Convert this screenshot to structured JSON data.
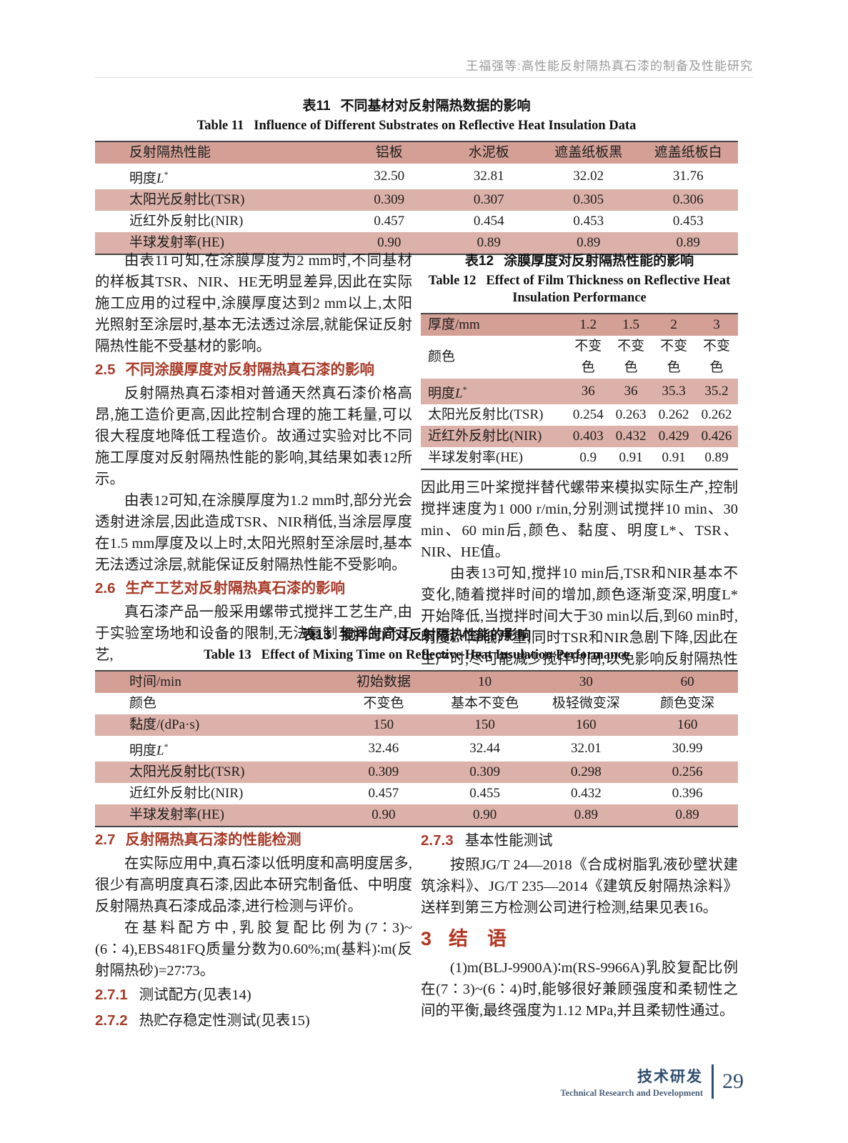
{
  "running_head": "王福强等:高性能反射隔热真石漆的制备及性能研究",
  "tables": {
    "table11": {
      "label_cn": "表11",
      "title_cn": "不同基材对反射隔热数据的影响",
      "label_en": "Table 11",
      "title_en": "Influence of Different Substrates on Reflective Heat Insulation Data",
      "rows": [
        [
          "反射隔热性能",
          "铝板",
          "水泥板",
          "遮盖纸板黑",
          "遮盖纸板白"
        ],
        [
          "明度L*",
          "32.50",
          "32.81",
          "32.02",
          "31.76"
        ],
        [
          "太阳光反射比(TSR)",
          "0.309",
          "0.307",
          "0.305",
          "0.306"
        ],
        [
          "近红外反射比(NIR)",
          "0.457",
          "0.454",
          "0.453",
          "0.453"
        ],
        [
          "半球发射率(HE)",
          "0.90",
          "0.89",
          "0.89",
          "0.89"
        ]
      ]
    },
    "table12": {
      "label_cn": "表12",
      "title_cn": "涂膜厚度对反射隔热性能的影响",
      "label_en": "Table 12",
      "title_en": "Effect of Film Thickness on Reflective Heat Insulation Performance",
      "rows": [
        [
          "厚度/mm",
          "1.2",
          "1.5",
          "2",
          "3"
        ],
        [
          "颜色",
          "不变色",
          "不变色",
          "不变色",
          "不变色"
        ],
        [
          "明度L*",
          "36",
          "36",
          "35.3",
          "35.2"
        ],
        [
          "太阳光反射比(TSR)",
          "0.254",
          "0.263",
          "0.262",
          "0.262"
        ],
        [
          "近红外反射比(NIR)",
          "0.403",
          "0.432",
          "0.429",
          "0.426"
        ],
        [
          "半球发射率(HE)",
          "0.9",
          "0.91",
          "0.91",
          "0.89"
        ]
      ]
    },
    "table13": {
      "label_cn": "表13",
      "title_cn": "搅拌时间对反射隔热性能的影响",
      "label_en": "Table 13",
      "title_en": "Effect of Mixing Time on Reflective Heat Insulation Performance",
      "rows": [
        [
          "时间/min",
          "初始数据",
          "10",
          "30",
          "60"
        ],
        [
          "颜色",
          "不变色",
          "基本不变色",
          "极轻微变深",
          "颜色变深"
        ],
        [
          "黏度/(dPa·s)",
          "150",
          "150",
          "160",
          "160"
        ],
        [
          "明度L*",
          "32.46",
          "32.44",
          "32.01",
          "30.99"
        ],
        [
          "太阳光反射比(TSR)",
          "0.309",
          "0.309",
          "0.298",
          "0.256"
        ],
        [
          "近红外反射比(NIR)",
          "0.457",
          "0.455",
          "0.432",
          "0.396"
        ],
        [
          "半球发射率(HE)",
          "0.90",
          "0.90",
          "0.89",
          "0.89"
        ]
      ]
    }
  },
  "body": {
    "p_table11": "由表11可知,在涂膜厚度为2 mm时,不同基材的样板其TSR、NIR、HE无明显差异,因此在实际施工应用的过程中,涂膜厚度达到2 mm以上,太阳光照射至涂层时,基本无法透过涂层,就能保证反射隔热性能不受基材的影响。",
    "h25": {
      "num": "2.5",
      "title": "不同涂膜厚度对反射隔热真石漆的影响"
    },
    "p25": "反射隔热真石漆相对普通天然真石漆价格高昂,施工造价更高,因此控制合理的施工耗量,可以很大程度地降低工程造价。故通过实验对比不同施工厚度对反射隔热性能的影响,其结果如表12所示。",
    "p_table12": "由表12可知,在涂膜厚度为1.2 mm时,部分光会透射进涂层,因此造成TSR、NIR稍低,当涂层厚度在1.5 mm厚度及以上时,太阳光照射至涂层时,基本无法透过涂层,就能保证反射隔热性能不受影响。",
    "h26": {
      "num": "2.6",
      "title": "生产工艺对反射隔热真石漆的影响"
    },
    "p26a": "真石漆产品一般采用螺带式搅拌工艺生产,由于实验室场地和设备的限制,无法复制车间生产工艺,",
    "p26b": "因此用三叶桨搅拌替代螺带来模拟实际生产,控制搅拌速度为1 000 r/min,分别测试搅拌10 min、30 min、60 min后,颜色、黏度、明度L*、TSR、NIR、HE值。",
    "p_table13": "由表13可知,搅拌10 min后,TSR和NIR基本不变化,随着搅拌时间的增加,颜色逐渐变深,明度L*开始降低,当搅拌时间大于30 min以后,到60 min时,明度L*降低严重,同时TSR和NIR急剧下降,因此在生产时,尽可能减少搅拌时间,以免影响反射隔热性能。",
    "h27": {
      "num": "2.7",
      "title": "反射隔热真石漆的性能检测"
    },
    "p27a": "在实际应用中,真石漆以低明度和高明度居多,很少有高明度真石漆,因此本研究制备低、中明度反射隔热真石漆成品漆,进行检测与评价。",
    "p27b": "在基料配方中,乳胶复配比例为(7∶3)~(6∶4),EBS481FQ质量分数为0.60%;m(基料)∶m(反射隔热砂)=27∶73。",
    "h271": {
      "num": "2.7.1",
      "title": "测试配方(见表14)"
    },
    "h272": {
      "num": "2.7.2",
      "title": "热贮存稳定性测试(见表15)"
    },
    "h273": {
      "num": "2.7.3",
      "title": "基本性能测试"
    },
    "p273": "按照JG/T 24—2018《合成树脂乳液砂壁状建筑涂料》、JG/T 235—2014《建筑反射隔热涂料》送样到第三方检测公司进行检测,结果见表16。",
    "h3": {
      "num": "3",
      "title": "结　语"
    },
    "p3": "(1)m(BLJ-9900A)∶m(RS-9966A)乳胶复配比例在(7∶3)~(6∶4)时,能够很好兼顾强度和柔韧性之间的平衡,最终强度为1.12 MPa,并且柔韧性通过。"
  },
  "footer": {
    "cn": "技术研发",
    "en": "Technical Research and Development",
    "page": "29"
  },
  "colors": {
    "table_header_pink": "#d4a096",
    "table_row_pink": "#dcb1a9",
    "section_red": "#a83b28",
    "conclusion_red": "#b23520",
    "footer_navy": "#2f4d6f",
    "running_head_gray": "#9a9a9a"
  }
}
